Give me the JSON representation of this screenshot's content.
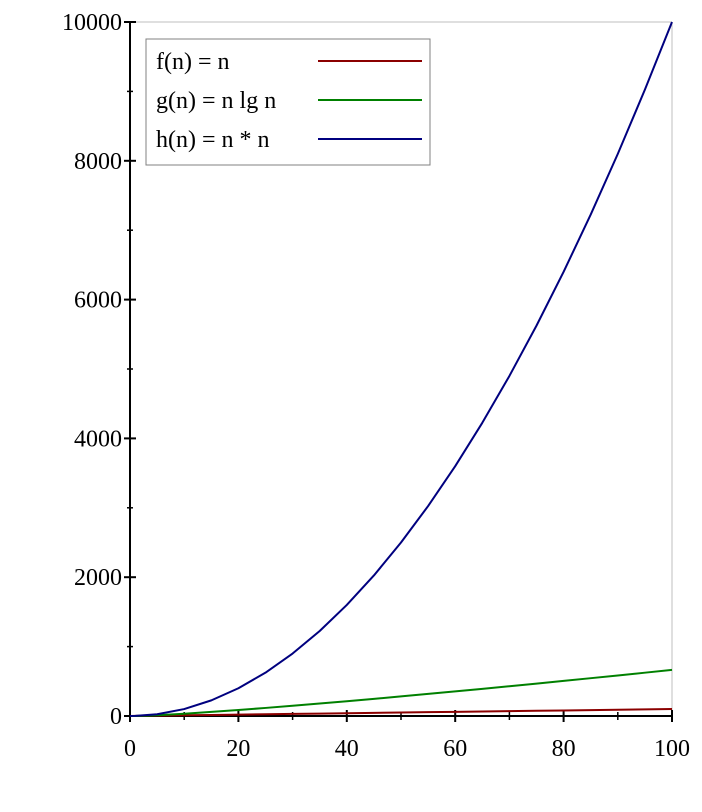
{
  "chart_data": {
    "type": "line",
    "title": "",
    "xlabel": "",
    "ylabel": "",
    "xlim": [
      0,
      100
    ],
    "ylim": [
      0,
      10000
    ],
    "x_ticks": [
      {
        "value": 0,
        "label": "0"
      },
      {
        "value": 20,
        "label": "20"
      },
      {
        "value": 40,
        "label": "40"
      },
      {
        "value": 60,
        "label": "60"
      },
      {
        "value": 80,
        "label": "80"
      },
      {
        "value": 100,
        "label": "100"
      }
    ],
    "y_ticks": [
      {
        "value": 0,
        "label": "0"
      },
      {
        "value": 2000,
        "label": "2000"
      },
      {
        "value": 4000,
        "label": "4000"
      },
      {
        "value": 6000,
        "label": "6000"
      },
      {
        "value": 8000,
        "label": "8000"
      },
      {
        "value": 10000,
        "label": "10000"
      }
    ],
    "grid": false,
    "legend_position": "top-left",
    "x": [
      1,
      5,
      10,
      15,
      20,
      25,
      30,
      35,
      40,
      45,
      50,
      55,
      60,
      65,
      70,
      75,
      80,
      85,
      90,
      95,
      100
    ],
    "series": [
      {
        "name": "f(n) = n",
        "color": "#8b0000",
        "values": [
          1,
          5,
          10,
          15,
          20,
          25,
          30,
          35,
          40,
          45,
          50,
          55,
          60,
          65,
          70,
          75,
          80,
          85,
          90,
          95,
          100
        ]
      },
      {
        "name": "g(n) = n lg n",
        "color": "#008000",
        "values": [
          0,
          11.6,
          33.2,
          58.6,
          86.4,
          116.1,
          147.2,
          179.5,
          212.9,
          247.1,
          282.2,
          318.0,
          354.4,
          391.5,
          429.1,
          467.2,
          505.8,
          544.8,
          584.3,
          624.1,
          664.4
        ]
      },
      {
        "name": "h(n) = n * n",
        "color": "#00007f",
        "values": [
          1,
          25,
          100,
          225,
          400,
          625,
          900,
          1225,
          1600,
          2025,
          2500,
          3025,
          3600,
          4225,
          4900,
          5625,
          6400,
          7225,
          8100,
          9025,
          10000
        ]
      }
    ]
  }
}
